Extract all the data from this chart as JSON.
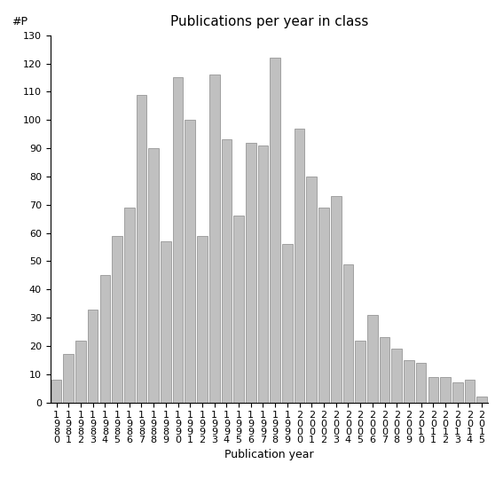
{
  "title": "Publications per year in class",
  "xlabel": "Publication year",
  "ylabel": "#P",
  "ylim": [
    0,
    130
  ],
  "yticks": [
    0,
    10,
    20,
    30,
    40,
    50,
    60,
    70,
    80,
    90,
    100,
    110,
    120,
    130
  ],
  "bar_color": "#c0c0c0",
  "bar_edge_color": "#888888",
  "categories": [
    "1\n9\n8\n0",
    "1\n9\n8\n1",
    "1\n9\n8\n2",
    "1\n9\n8\n3",
    "1\n9\n8\n4",
    "1\n9\n8\n5",
    "1\n9\n8\n6",
    "1\n9\n8\n7",
    "1\n9\n8\n8",
    "1\n9\n8\n9",
    "1\n9\n9\n0",
    "1\n9\n9\n1",
    "1\n9\n9\n2",
    "1\n9\n9\n3",
    "1\n9\n9\n4",
    "1\n9\n9\n5",
    "1\n9\n9\n6",
    "1\n9\n9\n7",
    "1\n9\n9\n8",
    "1\n9\n9\n9",
    "2\n0\n0\n0",
    "2\n0\n0\n1",
    "2\n0\n0\n2",
    "2\n0\n0\n3",
    "2\n0\n0\n4",
    "2\n0\n0\n5",
    "2\n0\n0\n6",
    "2\n0\n0\n7",
    "2\n0\n0\n8",
    "2\n0\n0\n9",
    "2\n0\n1\n0",
    "2\n0\n1\n1",
    "2\n0\n1\n2",
    "2\n0\n1\n3",
    "2\n0\n1\n4",
    "2\n0\n1\n5"
  ],
  "values": [
    8,
    17,
    22,
    33,
    45,
    59,
    69,
    109,
    90,
    57,
    115,
    100,
    59,
    116,
    93,
    66,
    92,
    91,
    122,
    56,
    97,
    80,
    69,
    73,
    49,
    22,
    31,
    23,
    19,
    15,
    14,
    9,
    9,
    7,
    8,
    2
  ],
  "title_fontsize": 11,
  "axis_label_fontsize": 9,
  "tick_fontsize": 8,
  "ylabel_fontsize": 9
}
